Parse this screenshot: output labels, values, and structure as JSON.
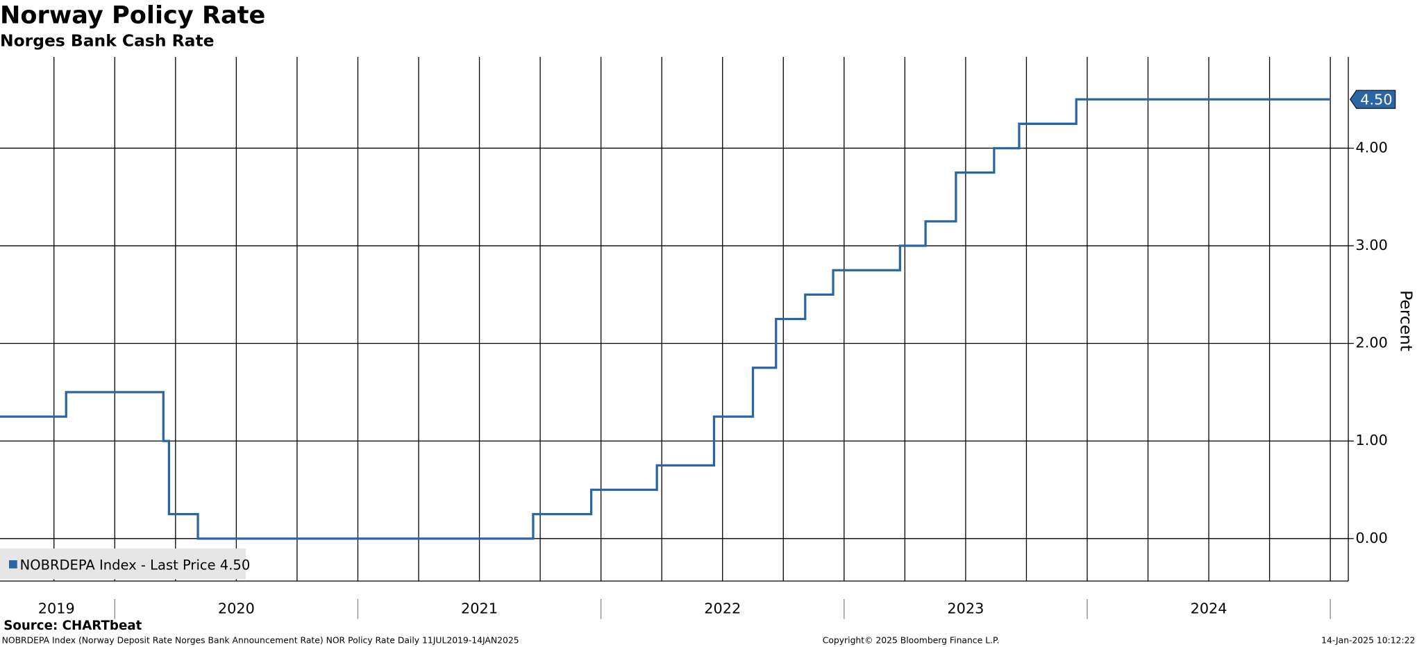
{
  "chart_data": {
    "type": "line",
    "step": "post",
    "title": "Norway Policy Rate",
    "subtitle": "Norges Bank Cash Rate",
    "y_axis_label": "Percent",
    "x": [
      2019.528,
      2019.8,
      2020.2,
      2020.223,
      2020.342,
      2021.721,
      2021.96,
      2022.23,
      2022.465,
      2022.625,
      2022.72,
      2022.84,
      2022.955,
      2023.23,
      2023.335,
      2023.46,
      2023.617,
      2023.72,
      2023.955,
      2025.0
    ],
    "series": [
      {
        "name": "NOBRDEPA Index - Last Price 4.50",
        "color": "#2a66a6",
        "values": [
          1.25,
          1.5,
          1.0,
          0.25,
          0,
          0.25,
          0.5,
          0.75,
          1.25,
          1.75,
          2.25,
          2.5,
          2.75,
          3.0,
          3.25,
          3.75,
          4.0,
          4.25,
          4.5,
          4.5
        ]
      }
    ],
    "last_price_label": {
      "value": 4.5,
      "label": "4.50"
    },
    "xlim": [
      2019.528,
      2025.074
    ],
    "xticks": [
      {
        "value": 2019.76,
        "label": "2019"
      },
      {
        "value": 2020.5,
        "label": "2020"
      },
      {
        "value": 2021.5,
        "label": "2021"
      },
      {
        "value": 2022.5,
        "label": "2022"
      },
      {
        "value": 2023.5,
        "label": "2023"
      },
      {
        "value": 2024.5,
        "label": "2024"
      }
    ],
    "xgrid": [
      2019.75,
      2020,
      2020.25,
      2020.5,
      2020.75,
      2021,
      2021.25,
      2021.5,
      2021.75,
      2022,
      2022.25,
      2022.5,
      2022.75,
      2023,
      2023.25,
      2023.5,
      2023.75,
      2024,
      2024.25,
      2024.5,
      2024.75,
      2025
    ],
    "ylim": [
      -0.435,
      4.935
    ],
    "yticks": [
      {
        "value": 0,
        "label": "0.00"
      },
      {
        "value": 1,
        "label": "1.00"
      },
      {
        "value": 2,
        "label": "2.00"
      },
      {
        "value": 3,
        "label": "3.00"
      },
      {
        "value": 4,
        "label": "4.00"
      }
    ],
    "grid": true,
    "legend": "lower left",
    "source": "Source: CHARTbeat",
    "footer_left": "NOBRDEPA Index (Norway Deposit Rate Norges Bank Announcement Rate) NOR Policy Rate  Daily 11JUL2019-14JAN2025",
    "footer_center": "Copyright© 2025 Bloomberg Finance L.P.",
    "footer_right": "14-Jan-2025 10:12:22"
  }
}
